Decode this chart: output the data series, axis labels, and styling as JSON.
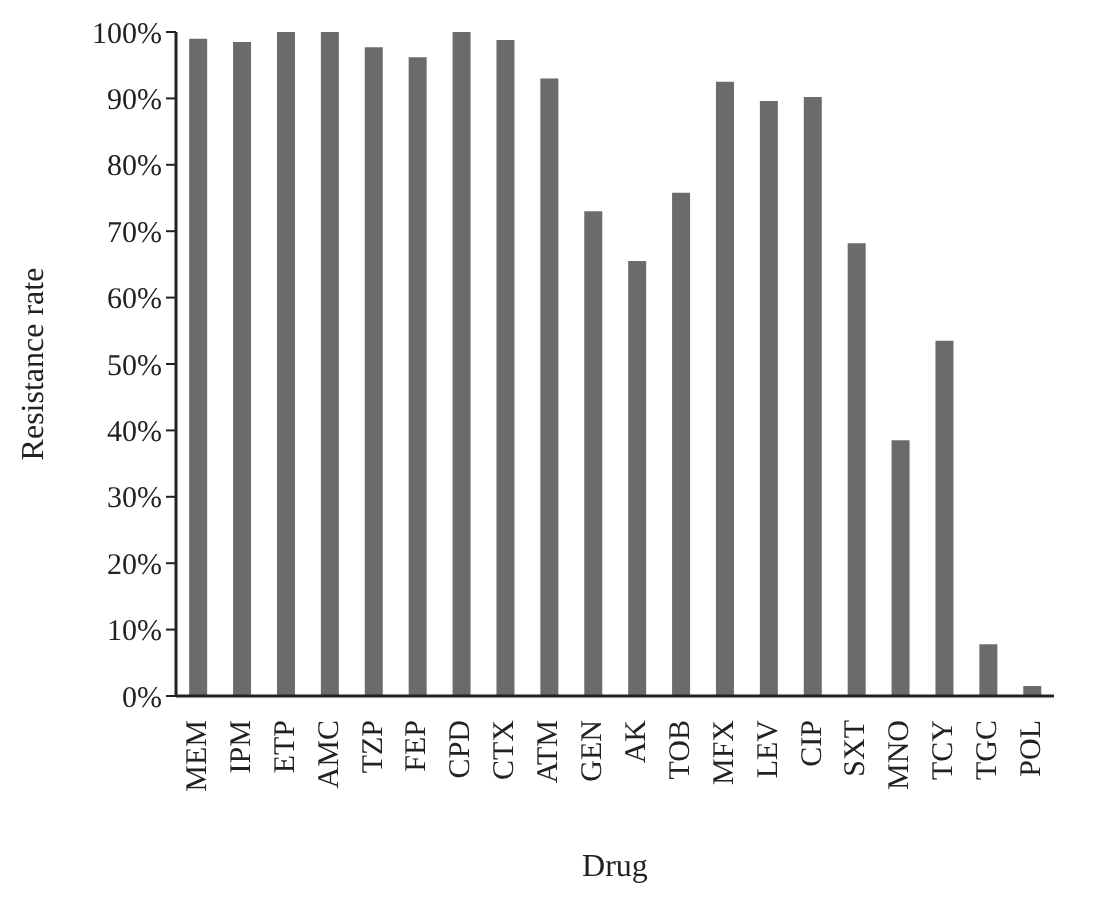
{
  "chart_data": {
    "type": "bar",
    "xlabel": "Drug",
    "ylabel": "Resistance rate",
    "categories": [
      "MEM",
      "IPM",
      "ETP",
      "AMC",
      "TZP",
      "FEP",
      "CPD",
      "CTX",
      "ATM",
      "GEN",
      "AK",
      "TOB",
      "MFX",
      "LEV",
      "CIP",
      "SXT",
      "MNO",
      "TCY",
      "TGC",
      "POL"
    ],
    "values": [
      99,
      98.5,
      100,
      100,
      97.7,
      96.2,
      100,
      98.8,
      93,
      73,
      65.5,
      75.8,
      92.5,
      89.6,
      90.2,
      68.2,
      38.5,
      53.5,
      7.8,
      1.5
    ],
    "color": "#6b6b6e",
    "ylim": [
      0,
      100
    ],
    "yticks": [
      {
        "value": 0,
        "label": "0%"
      },
      {
        "value": 10,
        "label": "10%"
      },
      {
        "value": 20,
        "label": "20%"
      },
      {
        "value": 30,
        "label": "30%"
      },
      {
        "value": 40,
        "label": "40%"
      },
      {
        "value": 50,
        "label": "50%"
      },
      {
        "value": 60,
        "label": "60%"
      },
      {
        "value": 70,
        "label": "70%"
      },
      {
        "value": 80,
        "label": "80%"
      },
      {
        "value": 90,
        "label": "90%"
      },
      {
        "value": 100,
        "label": "100%"
      }
    ],
    "grid": false
  }
}
